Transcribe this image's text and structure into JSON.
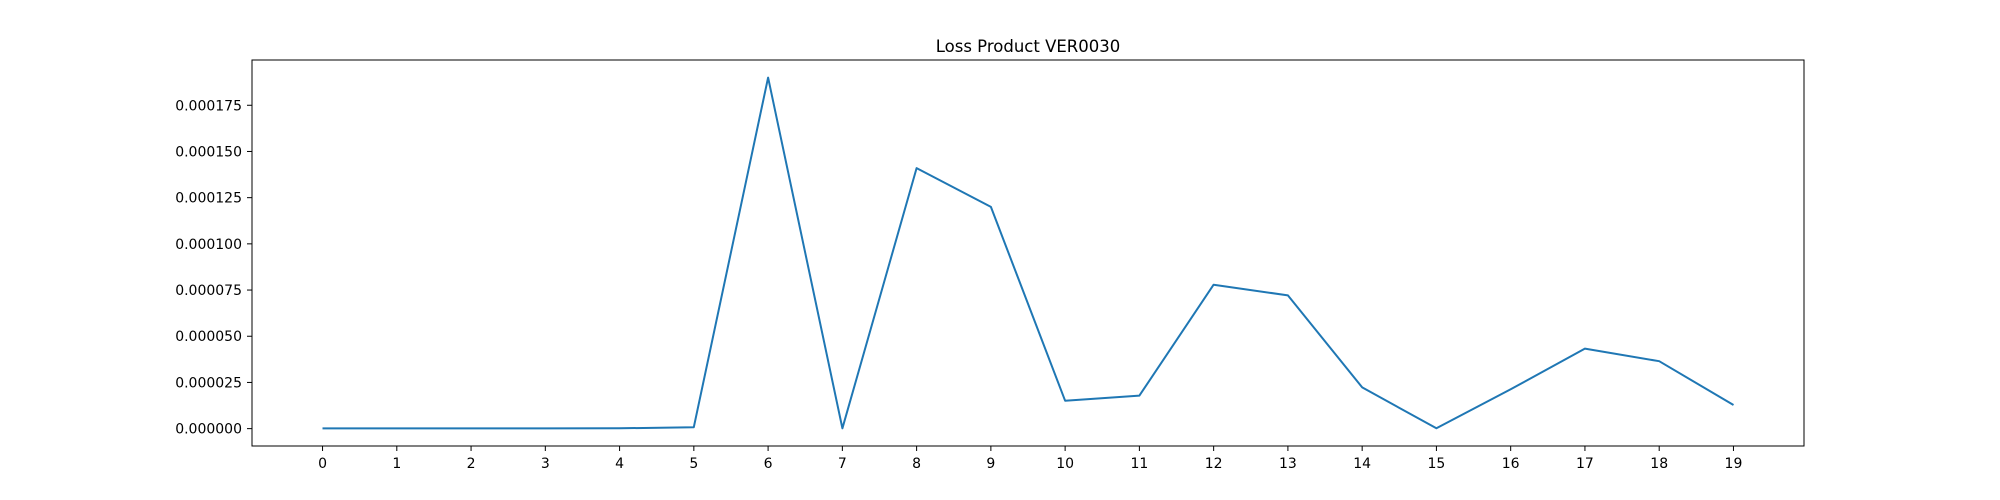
{
  "chart_data": {
    "type": "line",
    "title": "Loss Product VER0030",
    "xlabel": "",
    "ylabel": "",
    "x": [
      0,
      1,
      2,
      3,
      4,
      5,
      6,
      7,
      8,
      9,
      10,
      11,
      12,
      13,
      14,
      15,
      16,
      17,
      18,
      19
    ],
    "x_tick_labels": [
      "0",
      "1",
      "2",
      "3",
      "4",
      "5",
      "6",
      "7",
      "8",
      "9",
      "10",
      "11",
      "12",
      "13",
      "14",
      "15",
      "16",
      "17",
      "18",
      "19"
    ],
    "y_tick_labels": [
      "0.000000",
      "0.000025",
      "0.000050",
      "0.000075",
      "0.000100",
      "0.000125",
      "0.000150",
      "0.000175"
    ],
    "y_ticks": [
      0,
      2.5e-05,
      5e-05,
      7.5e-05,
      0.0001,
      0.000125,
      0.00015,
      0.000175
    ],
    "series": [
      {
        "color": "#1f77b4",
        "values": [
          1e-07,
          1e-07,
          1e-07,
          1e-07,
          2e-07,
          8e-07,
          0.00019,
          2e-07,
          0.000141,
          0.00012,
          1.51e-05,
          1.79e-05,
          7.79e-05,
          7.21e-05,
          2.23e-05,
          2e-07,
          2.13e-05,
          4.33e-05,
          3.65e-05,
          1.28e-05
        ]
      }
    ],
    "ylim": [
      -9.4e-06,
      0.0001995
    ],
    "xlim": [
      -0.95,
      19.95
    ],
    "grid": false
  }
}
